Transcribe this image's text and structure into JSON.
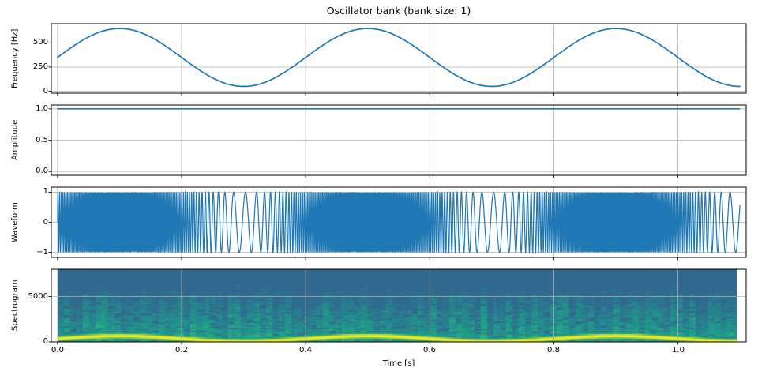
{
  "figure": {
    "title": "Oscillator bank (bank size: 1)",
    "xlabel": "Time [s]",
    "background": "#ffffff",
    "line_color": "#1f77b4",
    "grid_color": "#b0b0b0",
    "spine_color": "#000000",
    "duration_s": 1.1,
    "xlim": [
      -0.01,
      1.11
    ],
    "xticks": [
      0.0,
      0.2,
      0.4,
      0.6,
      0.8,
      1.0
    ],
    "xtick_labels": [
      "0.0",
      "0.2",
      "0.4",
      "0.6",
      "0.8",
      "1.0"
    ]
  },
  "chart_data": [
    {
      "type": "line",
      "name": "frequency-envelope",
      "ylabel": "Frequency [Hz]",
      "yticks": [
        0,
        250,
        500
      ],
      "ytick_labels": [
        "0",
        "250",
        "500"
      ],
      "ylim": [
        -20,
        700
      ],
      "grid": true,
      "model": {
        "kind": "sinusoid",
        "base_hz": 350,
        "deviation_hz": 300,
        "mod_rate_hz": 2.5
      },
      "x": [
        0,
        0.05,
        0.1,
        0.15,
        0.2,
        0.25,
        0.3,
        0.35,
        0.4,
        0.45,
        0.5,
        0.55,
        0.6,
        0.65,
        0.7,
        0.75,
        0.8,
        0.85,
        0.9,
        0.95,
        1.0,
        1.05,
        1.1
      ],
      "y": [
        350,
        562,
        650,
        562,
        350,
        138,
        50,
        138,
        350,
        562,
        650,
        562,
        350,
        138,
        50,
        138,
        350,
        562,
        650,
        562,
        350,
        138,
        50
      ]
    },
    {
      "type": "line",
      "name": "amplitude-envelope",
      "ylabel": "Amplitude",
      "yticks": [
        0.0,
        0.5,
        1.0
      ],
      "ytick_labels": [
        "0.0",
        "0.5",
        "1.0"
      ],
      "ylim": [
        -0.06,
        1.06
      ],
      "grid": true,
      "constant_value": 1.0,
      "x": [
        0,
        1.1
      ],
      "y": [
        1.0,
        1.0
      ]
    },
    {
      "type": "line",
      "name": "waveform",
      "ylabel": "Waveform",
      "yticks": [
        -1,
        0,
        1
      ],
      "ytick_labels": [
        "−1",
        "0",
        "1"
      ],
      "ylim": [
        -1.17,
        1.17
      ],
      "grid": true,
      "synthesis": {
        "kind": "fm-sine",
        "amplitude": 1.0,
        "carrier_base_hz": 350,
        "freq_deviation_hz": 300,
        "mod_rate_hz": 2.5
      }
    },
    {
      "type": "heatmap",
      "name": "spectrogram",
      "ylabel": "Spectrogram",
      "yticks": [
        0,
        5000
      ],
      "ytick_labels": [
        "0",
        "5000"
      ],
      "ylim": [
        0,
        8000
      ],
      "grid": true,
      "colormap": "viridis",
      "colormap_stops": [
        [
          0.0,
          "#440154"
        ],
        [
          0.1,
          "#482878"
        ],
        [
          0.2,
          "#3e4a89"
        ],
        [
          0.3,
          "#31688e"
        ],
        [
          0.4,
          "#26828e"
        ],
        [
          0.5,
          "#1f9e89"
        ],
        [
          0.6,
          "#35b779"
        ],
        [
          0.7,
          "#6dcd59"
        ],
        [
          0.8,
          "#b4de2c"
        ],
        [
          0.9,
          "#d8e219"
        ],
        [
          1.0,
          "#fde725"
        ]
      ],
      "fundamental_band_hz": [
        50,
        650
      ],
      "extent_t": [
        0.0,
        1.093
      ]
    }
  ]
}
